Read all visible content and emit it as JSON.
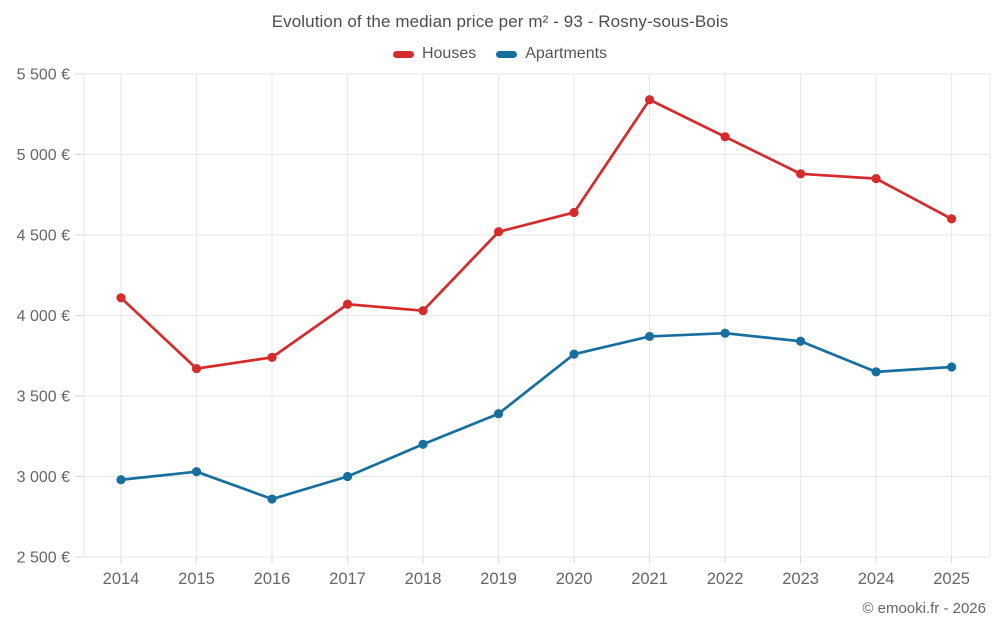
{
  "header": {
    "title": "Evolution of the median price per m² - 93 - Rosny-sous-Bois"
  },
  "legend": {
    "items": [
      {
        "label": "Houses",
        "color": "#d62b2b"
      },
      {
        "label": "Apartments",
        "color": "#176f9e"
      }
    ]
  },
  "footer": {
    "attribution": "© emooki.fr - 2026"
  },
  "colors": {
    "houses": "#d62b2b",
    "apartments": "#176f9e",
    "gridline": "#e7e7e7",
    "axis_tick": "#d6d6d6",
    "axis_label": "#666666",
    "title_text": "#4d4d4d"
  },
  "chart_data": {
    "type": "line",
    "title": "Evolution of the median price per m² - 93 - Rosny-sous-Bois",
    "xlabel": "",
    "ylabel": "",
    "grid": true,
    "legend_position": "top",
    "categories": [
      "2014",
      "2015",
      "2016",
      "2017",
      "2018",
      "2019",
      "2020",
      "2021",
      "2022",
      "2023",
      "2024",
      "2025"
    ],
    "series": [
      {
        "name": "Houses",
        "color": "#d62b2b",
        "values": [
          4110,
          3670,
          3740,
          4070,
          4030,
          4520,
          4640,
          5340,
          5110,
          4880,
          4850,
          4600
        ]
      },
      {
        "name": "Apartments",
        "color": "#176f9e",
        "values": [
          2980,
          3030,
          2860,
          3000,
          3200,
          3390,
          3760,
          3870,
          3890,
          3840,
          3650,
          3680
        ]
      }
    ],
    "ylim": [
      2500,
      5500
    ],
    "yticks": [
      2500,
      3000,
      3500,
      4000,
      4500,
      5000,
      5500
    ],
    "ytick_labels": [
      "2 500 €",
      "3 000 €",
      "3 500 €",
      "4 000 €",
      "4 500 €",
      "5 000 €",
      "5 500 €"
    ],
    "currency": "€"
  }
}
